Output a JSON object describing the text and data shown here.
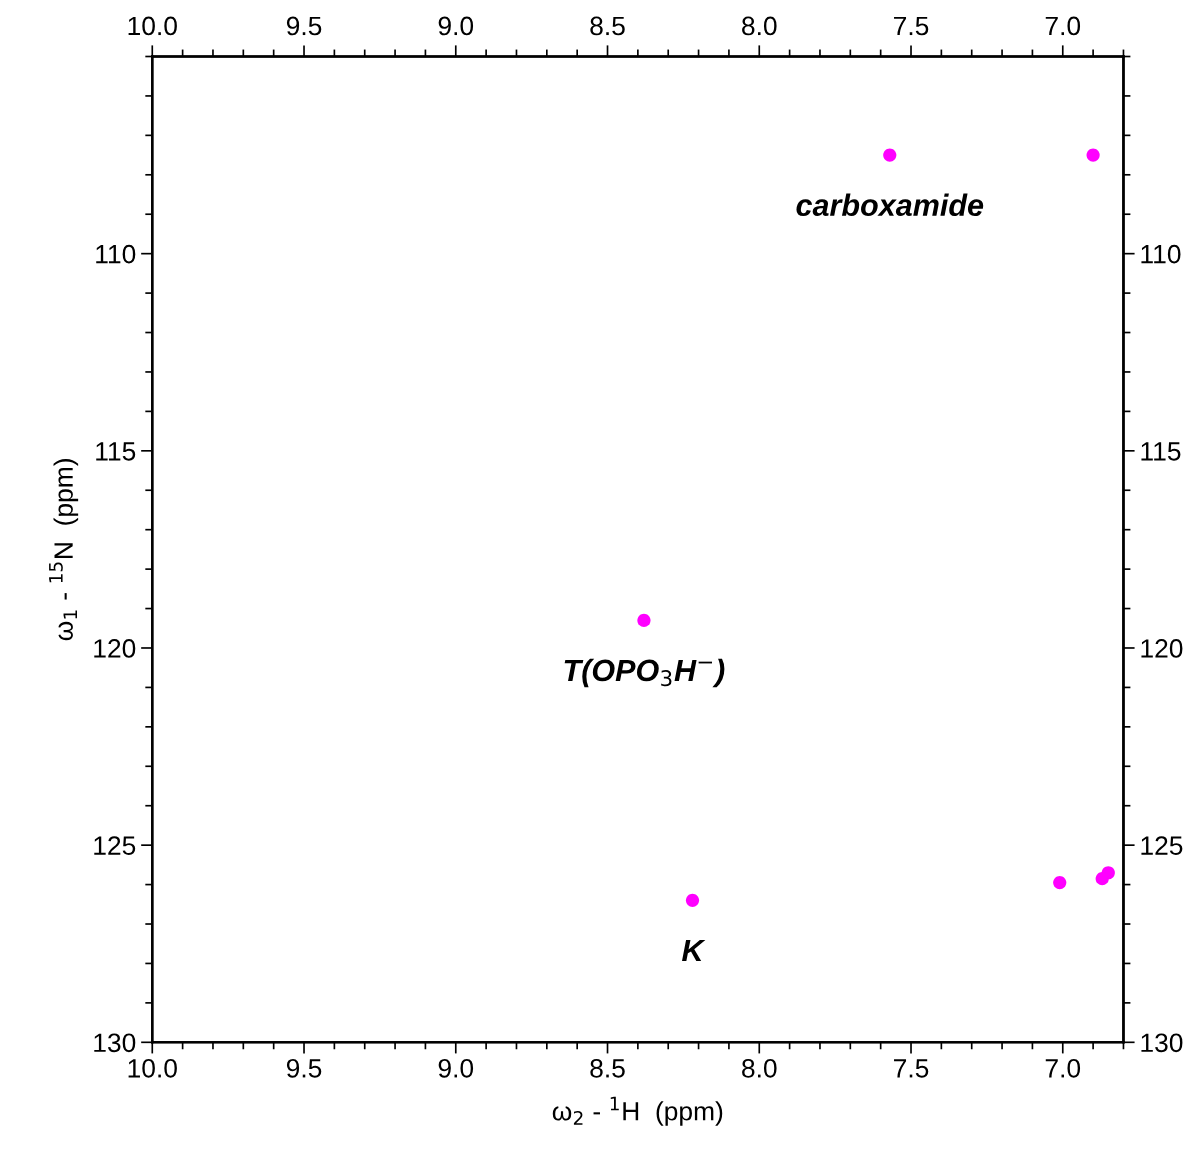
{
  "chart_data": {
    "type": "scatter",
    "xlabel": "ω$_{2}$ - $^{1}$H  (ppm)",
    "ylabel": "ω$_{1}$ - $^{15}$N  (ppm)",
    "x": [
      7.57,
      6.9,
      8.38,
      8.22,
      7.01,
      6.87,
      6.85
    ],
    "series": [
      {
        "color": "#ff00ff",
        "values": [
          107.5,
          107.5,
          119.3,
          126.4,
          125.95,
          125.85,
          125.7
        ]
      }
    ],
    "xlim": [
      10.0,
      6.8
    ],
    "xticks": [
      {
        "value": 10,
        "label": "10.0"
      },
      9.5,
      {
        "value": 9,
        "label": "9.0"
      },
      8.5,
      {
        "value": 8,
        "label": "8.0"
      },
      7.5,
      {
        "value": 7,
        "label": "7.0"
      }
    ],
    "x2lim": [
      10.0,
      6.8
    ],
    "x2ticks": [
      {
        "value": 10,
        "label": "10.0"
      },
      9.5,
      {
        "value": 9,
        "label": "9.0"
      },
      8.5,
      {
        "value": 8,
        "label": "8.0"
      },
      7.5,
      {
        "value": 7,
        "label": "7.0"
      }
    ],
    "marker": "circle",
    "ylim": [
      130,
      105
    ],
    "yticks": [
      110,
      115,
      120,
      125,
      130
    ],
    "y2lim": [
      130,
      105
    ],
    "y2ticks": [
      110,
      115,
      120,
      125,
      130
    ],
    "grid": false,
    "legend": false,
    "annotations": [
      {
        "text": "carboxamide",
        "x": 7.57,
        "y": 107.5
      },
      {
        "text": "T(OPO$_{3}$H$^{−}$)",
        "x": 8.38,
        "y": 119.3
      },
      {
        "text": "K",
        "x": 8.22,
        "y": 126.4
      }
    ]
  }
}
